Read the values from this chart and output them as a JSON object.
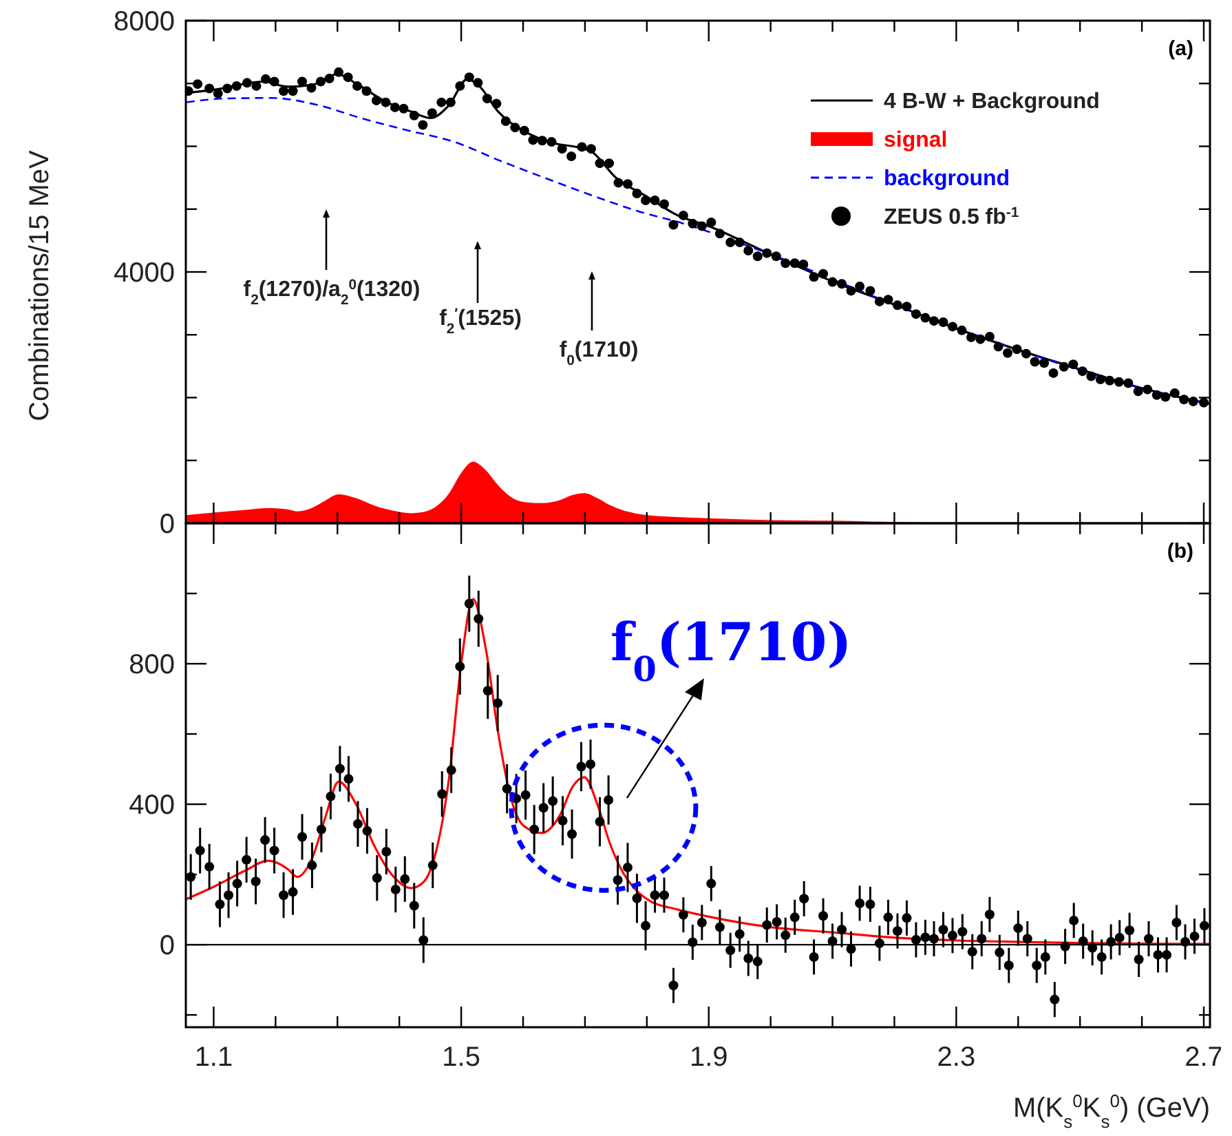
{
  "chart_data": [
    {
      "type": "scatter",
      "ylabel": "Combinations/15 MeV",
      "xlim": [
        1.055,
        2.71
      ],
      "ylim": [
        0,
        8000
      ],
      "xticks": [
        1.1,
        {
          "value": 1.2,
          "label": null
        },
        {
          "value": 1.3,
          "label": null
        },
        {
          "value": 1.4,
          "label": null
        },
        1.5,
        {
          "value": 1.6,
          "label": null
        },
        {
          "value": 1.7,
          "label": null
        },
        {
          "value": 1.8,
          "label": null
        },
        1.9,
        {
          "value": 2.0,
          "label": null
        },
        {
          "value": 2.1,
          "label": null
        },
        {
          "value": 2.2,
          "label": null
        },
        2.3,
        {
          "value": 2.4,
          "label": null
        },
        {
          "value": 2.5,
          "label": null
        },
        {
          "value": 2.6,
          "label": null
        },
        2.7
      ],
      "yticks": [
        0,
        {
          "value": 1000,
          "label": null
        },
        {
          "value": 2000,
          "label": null
        },
        {
          "value": 3000,
          "label": null
        },
        4000,
        {
          "value": 5000,
          "label": null
        },
        {
          "value": 6000,
          "label": null
        },
        {
          "value": 7000,
          "label": null
        },
        8000
      ],
      "tick_labels": "y",
      "grid": false,
      "legend": "top right",
      "series": [
        {
          "type": "line",
          "name": "4 B-W + Background",
          "color": "#000000",
          "line_style": "solid",
          "x": [
            1.056,
            1.1,
            1.18,
            1.22,
            1.26,
            1.3,
            1.33,
            1.38,
            1.42,
            1.45,
            1.48,
            1.51,
            1.53,
            1.56,
            1.6,
            1.65,
            1.69,
            1.71,
            1.75,
            1.8,
            1.85,
            1.9,
            2.0,
            2.1,
            2.2,
            2.3,
            2.4,
            2.5,
            2.6,
            2.71
          ],
          "values": [
            6850,
            6900,
            7030,
            6950,
            6980,
            7150,
            7000,
            6700,
            6550,
            6450,
            6650,
            7070,
            6950,
            6550,
            6250,
            6050,
            5980,
            5920,
            5500,
            5200,
            4900,
            4730,
            4280,
            3850,
            3480,
            3100,
            2760,
            2450,
            2150,
            1900
          ]
        },
        {
          "type": "area",
          "name": "signal",
          "color": "#ff0000",
          "x": [
            1.056,
            1.1,
            1.15,
            1.188,
            1.22,
            1.235,
            1.26,
            1.28,
            1.302,
            1.33,
            1.36,
            1.39,
            1.419,
            1.44,
            1.46,
            1.48,
            1.5,
            1.519,
            1.54,
            1.56,
            1.58,
            1.6,
            1.63,
            1.66,
            1.68,
            1.699,
            1.72,
            1.74,
            1.76,
            1.78,
            1.8,
            1.85,
            1.9,
            2.0,
            2.1,
            2.2,
            2.3,
            2.4,
            2.5,
            2.6,
            2.71
          ],
          "values": [
            130,
            170,
            210,
            240,
            220,
            190,
            250,
            360,
            460,
            400,
            280,
            200,
            160,
            180,
            270,
            470,
            800,
            980,
            840,
            600,
            420,
            340,
            320,
            370,
            450,
            480,
            400,
            290,
            210,
            160,
            130,
            100,
            80,
            50,
            40,
            20,
            10,
            10,
            0,
            0,
            0
          ]
        },
        {
          "type": "line",
          "name": "background",
          "color": "#0000ff",
          "line_style": "dashed",
          "x": [
            1.056,
            1.118,
            1.193,
            1.267,
            1.341,
            1.415,
            1.489,
            1.563,
            1.637,
            1.711,
            1.785,
            1.859,
            2.0,
            2.2,
            2.4,
            2.6,
            2.71
          ],
          "values": [
            6700,
            6760,
            6770,
            6660,
            6440,
            6250,
            6070,
            5770,
            5490,
            5220,
            4970,
            4770,
            4280,
            3480,
            2760,
            2150,
            1900
          ]
        },
        {
          "type": "scatter",
          "name": "ZEUS 0.5 fb$^{-1}$",
          "color": "#000000",
          "marker": "circle",
          "x": [
            1.059,
            1.074,
            1.093,
            1.107,
            1.122,
            1.137,
            1.154,
            1.169,
            1.184,
            1.198,
            1.213,
            1.228,
            1.243,
            1.258,
            1.273,
            1.287,
            1.302,
            1.317,
            1.332,
            1.347,
            1.363,
            1.378,
            1.393,
            1.407,
            1.424,
            1.438,
            1.453,
            1.468,
            1.483,
            1.498,
            1.513,
            1.527,
            1.542,
            1.557,
            1.572,
            1.587,
            1.602,
            1.616,
            1.631,
            1.646,
            1.663,
            1.678,
            1.695,
            1.71,
            1.724,
            1.739,
            1.754,
            1.769,
            1.784,
            1.798,
            1.813,
            1.828,
            1.843,
            1.859,
            1.874,
            1.889,
            1.904,
            1.918,
            1.935,
            1.95,
            1.964,
            1.979,
            1.994,
            2.009,
            2.024,
            2.039,
            2.053,
            2.07,
            2.085,
            2.1,
            2.115,
            2.13,
            2.144,
            2.161,
            2.176,
            2.19,
            2.205,
            2.22,
            2.235,
            2.25,
            2.264,
            2.279,
            2.294,
            2.309,
            2.324,
            2.339,
            2.354,
            2.368,
            2.383,
            2.398,
            2.413,
            2.427,
            2.442,
            2.457,
            2.474,
            2.489,
            2.504,
            2.518,
            2.533,
            2.548,
            2.563,
            2.578,
            2.594,
            2.609,
            2.624,
            2.638,
            2.653,
            2.668,
            2.683,
            2.7
          ],
          "values": [
            6880,
            6990,
            6920,
            6840,
            6920,
            6960,
            7010,
            6960,
            7070,
            7030,
            6880,
            6880,
            7030,
            6930,
            7030,
            7080,
            7180,
            7100,
            6960,
            6880,
            6730,
            6700,
            6620,
            6600,
            6490,
            6340,
            6530,
            6700,
            6700,
            6960,
            7100,
            7010,
            6760,
            6680,
            6400,
            6300,
            6250,
            6100,
            6090,
            6070,
            5960,
            5840,
            5990,
            5960,
            5730,
            5730,
            5420,
            5400,
            5250,
            5140,
            5140,
            5080,
            4750,
            4900,
            4770,
            4730,
            4790,
            4610,
            4470,
            4470,
            4340,
            4250,
            4300,
            4250,
            4140,
            4140,
            4120,
            3920,
            3970,
            3840,
            3810,
            3700,
            3770,
            3700,
            3530,
            3560,
            3470,
            3450,
            3330,
            3270,
            3220,
            3200,
            3130,
            3070,
            2960,
            2930,
            2970,
            2810,
            2710,
            2770,
            2700,
            2570,
            2550,
            2390,
            2490,
            2530,
            2420,
            2340,
            2290,
            2270,
            2250,
            2230,
            2100,
            2130,
            2040,
            2010,
            2070,
            1970,
            1940,
            1920
          ]
        }
      ],
      "annotations": [
        "(a)",
        "f$_{2}$(1270)/a$_{2}$$^{0}$(1320)",
        "f$_{2}$$^{′}$(1525)",
        "f$_{0}$(1710)"
      ]
    },
    {
      "type": "scatter",
      "xlabel": "M(K$_{s}$$^{0}$K$_{s}$$^{0}$) (GeV)",
      "xlim": [
        1.055,
        2.71
      ],
      "ylim": [
        -235,
        1200
      ],
      "xticks": [
        1.1,
        {
          "value": 1.2,
          "label": null
        },
        {
          "value": 1.3,
          "label": null
        },
        {
          "value": 1.4,
          "label": null
        },
        1.5,
        {
          "value": 1.6,
          "label": null
        },
        {
          "value": 1.7,
          "label": null
        },
        {
          "value": 1.8,
          "label": null
        },
        1.9,
        {
          "value": 2.0,
          "label": null
        },
        {
          "value": 2.1,
          "label": null
        },
        {
          "value": 2.2,
          "label": null
        },
        2.3,
        {
          "value": 2.4,
          "label": null
        },
        {
          "value": 2.5,
          "label": null
        },
        {
          "value": 2.6,
          "label": null
        },
        2.7
      ],
      "yticks": [
        {
          "value": -200,
          "label": null
        },
        0,
        {
          "value": 200,
          "label": null
        },
        400,
        {
          "value": 600,
          "label": null
        },
        800,
        {
          "value": 1000,
          "label": null
        }
      ],
      "grid": false,
      "legend": false,
      "ref_lines": [
        {
          "axis": "y",
          "value": 0,
          "color": "#000000"
        }
      ],
      "series": [
        {
          "type": "scatter",
          "color": "#000000",
          "marker": "circle",
          "x": [
            1.063,
            1.078,
            1.093,
            1.11,
            1.124,
            1.138,
            1.153,
            1.168,
            1.183,
            1.198,
            1.213,
            1.228,
            1.243,
            1.259,
            1.274,
            1.289,
            1.304,
            1.318,
            1.333,
            1.348,
            1.364,
            1.379,
            1.394,
            1.409,
            1.424,
            1.439,
            1.454,
            1.469,
            1.484,
            1.498,
            1.513,
            1.528,
            1.543,
            1.559,
            1.574,
            1.589,
            1.604,
            1.618,
            1.633,
            1.648,
            1.664,
            1.679,
            1.694,
            1.709,
            1.724,
            1.738,
            1.753,
            1.769,
            1.784,
            1.798,
            1.813,
            1.828,
            1.843,
            1.859,
            1.874,
            1.889,
            1.904,
            1.918,
            1.935,
            1.95,
            1.964,
            1.979,
            1.994,
            2.01,
            2.024,
            2.039,
            2.054,
            2.07,
            2.085,
            2.1,
            2.115,
            2.13,
            2.144,
            2.161,
            2.176,
            2.19,
            2.205,
            2.22,
            2.235,
            2.25,
            2.264,
            2.279,
            2.294,
            2.31,
            2.326,
            2.341,
            2.354,
            2.37,
            2.385,
            2.4,
            2.415,
            2.43,
            2.444,
            2.459,
            2.476,
            2.49,
            2.505,
            2.52,
            2.535,
            2.55,
            2.564,
            2.58,
            2.595,
            2.611,
            2.626,
            2.64,
            2.656,
            2.67,
            2.685,
            2.701
          ],
          "values": [
            193,
            268,
            222,
            115,
            141,
            174,
            242,
            180,
            298,
            268,
            141,
            150,
            307,
            226,
            328,
            422,
            501,
            472,
            344,
            324,
            190,
            265,
            157,
            187,
            111,
            13,
            226,
            429,
            497,
            792,
            971,
            928,
            723,
            688,
            444,
            416,
            426,
            328,
            390,
            409,
            353,
            315,
            507,
            514,
            350,
            412,
            184,
            220,
            132,
            54,
            141,
            141,
            -116,
            85,
            7,
            63,
            174,
            50,
            -16,
            30,
            -39,
            -48,
            56,
            65,
            27,
            78,
            131,
            -35,
            82,
            10,
            43,
            -12,
            118,
            115,
            4,
            78,
            39,
            76,
            14,
            21,
            17,
            43,
            26,
            37,
            -20,
            17,
            86,
            -22,
            -59,
            47,
            17,
            -59,
            -35,
            -156,
            -5,
            69,
            10,
            -9,
            -35,
            8,
            20,
            41,
            -42,
            17,
            -29,
            -29,
            63,
            8,
            24,
            54
          ],
          "errors": [
            65,
            65,
            65,
            65,
            65,
            65,
            65,
            65,
            65,
            65,
            65,
            65,
            65,
            65,
            65,
            65,
            65,
            65,
            65,
            65,
            65,
            65,
            65,
            65,
            65,
            65,
            65,
            65,
            65,
            80,
            80,
            80,
            80,
            80,
            70,
            70,
            70,
            70,
            70,
            70,
            70,
            70,
            70,
            70,
            70,
            70,
            70,
            70,
            70,
            70,
            50,
            50,
            50,
            50,
            50,
            50,
            50,
            50,
            50,
            50,
            50,
            50,
            50,
            50,
            50,
            50,
            50,
            50,
            50,
            50,
            50,
            50,
            50,
            50,
            50,
            50,
            50,
            50,
            50,
            50,
            50,
            50,
            50,
            50,
            50,
            50,
            50,
            50,
            50,
            50,
            50,
            50,
            50,
            50,
            50,
            50,
            50,
            50,
            50,
            50,
            50,
            50,
            50,
            50,
            50,
            50,
            50,
            50,
            50,
            50
          ]
        },
        {
          "type": "line",
          "color": "#ff0000",
          "line_style": "solid",
          "x": [
            1.056,
            1.1,
            1.15,
            1.188,
            1.22,
            1.235,
            1.26,
            1.28,
            1.302,
            1.33,
            1.36,
            1.39,
            1.419,
            1.44,
            1.46,
            1.48,
            1.5,
            1.519,
            1.54,
            1.56,
            1.58,
            1.6,
            1.63,
            1.66,
            1.68,
            1.699,
            1.72,
            1.74,
            1.76,
            1.78,
            1.8,
            1.85,
            1.9,
            2.0,
            2.1,
            2.2,
            2.3,
            2.4,
            2.5,
            2.6,
            2.71
          ],
          "values": [
            130,
            165,
            210,
            239,
            215,
            193,
            250,
            360,
            464,
            400,
            280,
            195,
            161,
            180,
            270,
            470,
            800,
            984,
            840,
            600,
            420,
            340,
            318,
            370,
            450,
            477,
            400,
            290,
            210,
            160,
            130,
            100,
            80,
            50,
            35,
            20,
            12,
            8,
            5,
            3,
            2
          ]
        }
      ],
      "annotations": [
        "(b)",
        {
          "text": "f$_{0}$(1710)",
          "x": 1.73,
          "y": 390
        }
      ]
    }
  ]
}
